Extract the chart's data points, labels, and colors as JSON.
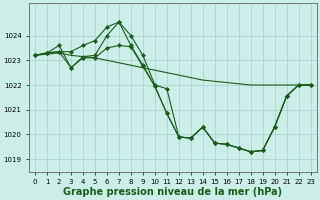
{
  "background_color": "#cceee8",
  "grid_color": "#aad4ce",
  "line_color": "#1a5c1a",
  "marker_color": "#1a5c1a",
  "xlabel": "Graphe pression niveau de la mer (hPa)",
  "xlabel_fontsize": 7,
  "ylabel_fontsize": 6,
  "tick_fontsize": 5,
  "ylim": [
    1018.5,
    1025.3
  ],
  "xlim": [
    -0.5,
    23.5
  ],
  "yticks": [
    1019,
    1020,
    1021,
    1022,
    1023,
    1024
  ],
  "xtick_labels": [
    "0",
    "1",
    "2",
    "3",
    "4",
    "5",
    "6",
    "7",
    "8",
    "9",
    "10",
    "11",
    "12",
    "13",
    "14",
    "15",
    "16",
    "17",
    "18",
    "19",
    "20",
    "21",
    "22",
    "23"
  ],
  "series": [
    {
      "x": [
        0,
        1,
        2,
        3,
        4,
        5,
        6,
        7,
        8,
        9,
        10,
        11,
        12,
        13,
        14,
        15,
        16,
        17,
        18,
        19,
        20,
        21,
        22,
        23
      ],
      "y": [
        1023.2,
        1023.25,
        1023.3,
        1023.2,
        1023.15,
        1023.1,
        1023.0,
        1022.9,
        1022.8,
        1022.7,
        1022.6,
        1022.5,
        1022.4,
        1022.3,
        1022.2,
        1022.15,
        1022.1,
        1022.05,
        1022.0,
        1022.0,
        1022.0,
        1022.0,
        1022.0,
        1022.0
      ],
      "marker": null,
      "linewidth": 0.8,
      "markersize": 0
    },
    {
      "x": [
        0,
        1,
        2,
        3,
        4,
        5,
        6,
        7,
        8,
        9,
        10,
        11,
        12,
        13,
        14,
        15,
        16,
        17,
        18,
        19,
        20,
        21,
        22,
        23
      ],
      "y": [
        1023.2,
        1023.3,
        1023.35,
        1023.35,
        1023.6,
        1023.8,
        1024.35,
        1024.55,
        1024.0,
        1023.2,
        1022.0,
        1021.85,
        1019.9,
        1019.85,
        1020.3,
        1019.65,
        1019.6,
        1019.45,
        1019.3,
        1019.35,
        1020.3,
        1021.55,
        1022.0,
        1022.0
      ],
      "marker": "D",
      "linewidth": 0.8,
      "markersize": 2.0
    },
    {
      "x": [
        0,
        1,
        2,
        3,
        4,
        5,
        6,
        7,
        8,
        9,
        10,
        11,
        12,
        13,
        14,
        15,
        16,
        17,
        18,
        19,
        20,
        21,
        22,
        23
      ],
      "y": [
        1023.2,
        1023.3,
        1023.6,
        1022.7,
        1023.15,
        1023.2,
        1024.0,
        1024.55,
        1023.6,
        1022.8,
        1021.95,
        1020.85,
        1019.9,
        1019.85,
        1020.3,
        1019.65,
        1019.6,
        1019.45,
        1019.3,
        1019.35,
        1020.3,
        1021.55,
        1022.0,
        1022.0
      ],
      "marker": "D",
      "linewidth": 0.8,
      "markersize": 2.0
    },
    {
      "x": [
        0,
        1,
        2,
        3,
        4,
        5,
        6,
        7,
        8,
        9,
        10,
        11,
        12,
        13,
        14,
        15,
        16,
        17,
        18,
        19,
        20,
        21,
        22,
        23
      ],
      "y": [
        1023.2,
        1023.3,
        1023.35,
        1022.7,
        1023.1,
        1023.1,
        1023.5,
        1023.6,
        1023.55,
        1022.75,
        1021.95,
        1020.85,
        1019.9,
        1019.85,
        1020.3,
        1019.65,
        1019.6,
        1019.45,
        1019.3,
        1019.35,
        1020.3,
        1021.55,
        1022.0,
        1022.0
      ],
      "marker": "D",
      "linewidth": 0.8,
      "markersize": 2.0
    }
  ]
}
